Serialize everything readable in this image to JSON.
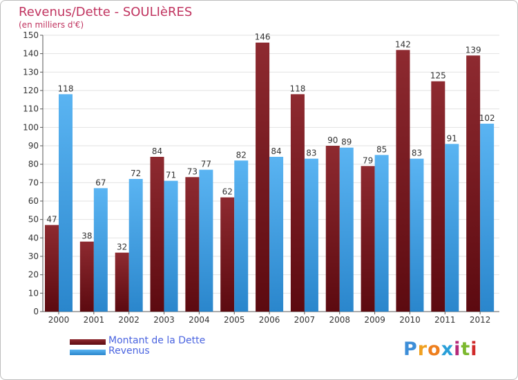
{
  "title": "Revenus/Dette - SOULIèRES",
  "subtitle": "(en milliers d'€)",
  "legend": {
    "items": [
      {
        "label": "Montant de la Dette",
        "color": "#7a1c22"
      },
      {
        "label": "Revenus",
        "color": "#3aa0e8"
      }
    ]
  },
  "logo": {
    "text": "Proxiti",
    "colors": [
      "#3d8ed8",
      "#f0a020",
      "#ee7f1e",
      "#2a9fd8",
      "#b52a7a",
      "#7cb82e",
      "#d02a2a"
    ]
  },
  "chart_data": {
    "type": "bar",
    "categories": [
      "2000",
      "2001",
      "2002",
      "2003",
      "2004",
      "2005",
      "2006",
      "2007",
      "2008",
      "2009",
      "2010",
      "2011",
      "2012"
    ],
    "series": [
      {
        "name": "Montant de la Dette",
        "color": "#7a1c22",
        "values": [
          47,
          38,
          32,
          84,
          73,
          62,
          146,
          118,
          90,
          79,
          142,
          125,
          139
        ]
      },
      {
        "name": "Revenus",
        "color": "#3aa0e8",
        "values": [
          118,
          67,
          72,
          71,
          77,
          82,
          84,
          83,
          89,
          85,
          83,
          91,
          102
        ]
      }
    ],
    "ylim": [
      0,
      150
    ],
    "yticks": [
      0,
      10,
      20,
      30,
      40,
      50,
      60,
      70,
      80,
      90,
      100,
      110,
      120,
      130,
      140,
      150
    ],
    "grid": true,
    "xlabel": "",
    "ylabel": ""
  }
}
